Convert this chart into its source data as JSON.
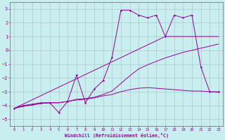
{
  "title": "",
  "xlabel": "Windchill (Refroidissement éolien,°C)",
  "background_color": "#c8eef0",
  "grid_color": "#b0c8cc",
  "line_color": "#990099",
  "xlim": [
    -0.5,
    23.5
  ],
  "ylim": [
    -5.5,
    3.5
  ],
  "xticks": [
    0,
    1,
    2,
    3,
    4,
    5,
    6,
    7,
    8,
    9,
    10,
    11,
    12,
    13,
    14,
    15,
    16,
    17,
    18,
    19,
    20,
    21,
    22,
    23
  ],
  "yticks": [
    -5,
    -4,
    -3,
    -2,
    -1,
    0,
    1,
    2,
    3
  ],
  "series": {
    "line1_x": [
      0,
      1,
      2,
      3,
      4,
      5,
      6,
      7,
      8,
      9,
      10,
      11,
      12,
      13,
      14,
      15,
      16,
      17,
      18,
      19,
      20,
      21,
      22,
      23
    ],
    "line1_y": [
      -4.2,
      -4.0,
      -3.9,
      -3.8,
      -3.8,
      -4.5,
      -3.7,
      -1.8,
      -3.8,
      -2.8,
      -2.2,
      -0.5,
      2.9,
      2.9,
      2.55,
      2.35,
      2.55,
      1.0,
      2.55,
      2.35,
      2.55,
      -1.2,
      -3.0,
      -3.0
    ],
    "line2_x": [
      0,
      1,
      2,
      3,
      4,
      5,
      6,
      7,
      8,
      9,
      10,
      11,
      12,
      13,
      14,
      15,
      16,
      17,
      18,
      19,
      20,
      21,
      22,
      23
    ],
    "line2_y": [
      -4.2,
      -4.05,
      -3.95,
      -3.85,
      -3.8,
      -3.8,
      -3.7,
      -3.6,
      -3.55,
      -3.45,
      -3.3,
      -3.2,
      -3.0,
      -2.85,
      -2.75,
      -2.7,
      -2.75,
      -2.8,
      -2.85,
      -2.9,
      -2.95,
      -2.95,
      -3.0,
      -3.05
    ],
    "line3_x": [
      0,
      1,
      2,
      3,
      4,
      5,
      6,
      7,
      8,
      9,
      10,
      11,
      12,
      13,
      14,
      15,
      16,
      17,
      18,
      19,
      20,
      21,
      22,
      23
    ],
    "line3_y": [
      -4.2,
      -4.05,
      -3.95,
      -3.85,
      -3.8,
      -3.8,
      -3.7,
      -3.55,
      -3.5,
      -3.4,
      -3.2,
      -2.95,
      -2.4,
      -1.85,
      -1.35,
      -1.05,
      -0.8,
      -0.55,
      -0.35,
      -0.15,
      0.0,
      0.15,
      0.3,
      0.45
    ],
    "line4_x": [
      0,
      17,
      23
    ],
    "line4_y": [
      -4.2,
      1.0,
      1.0
    ]
  }
}
